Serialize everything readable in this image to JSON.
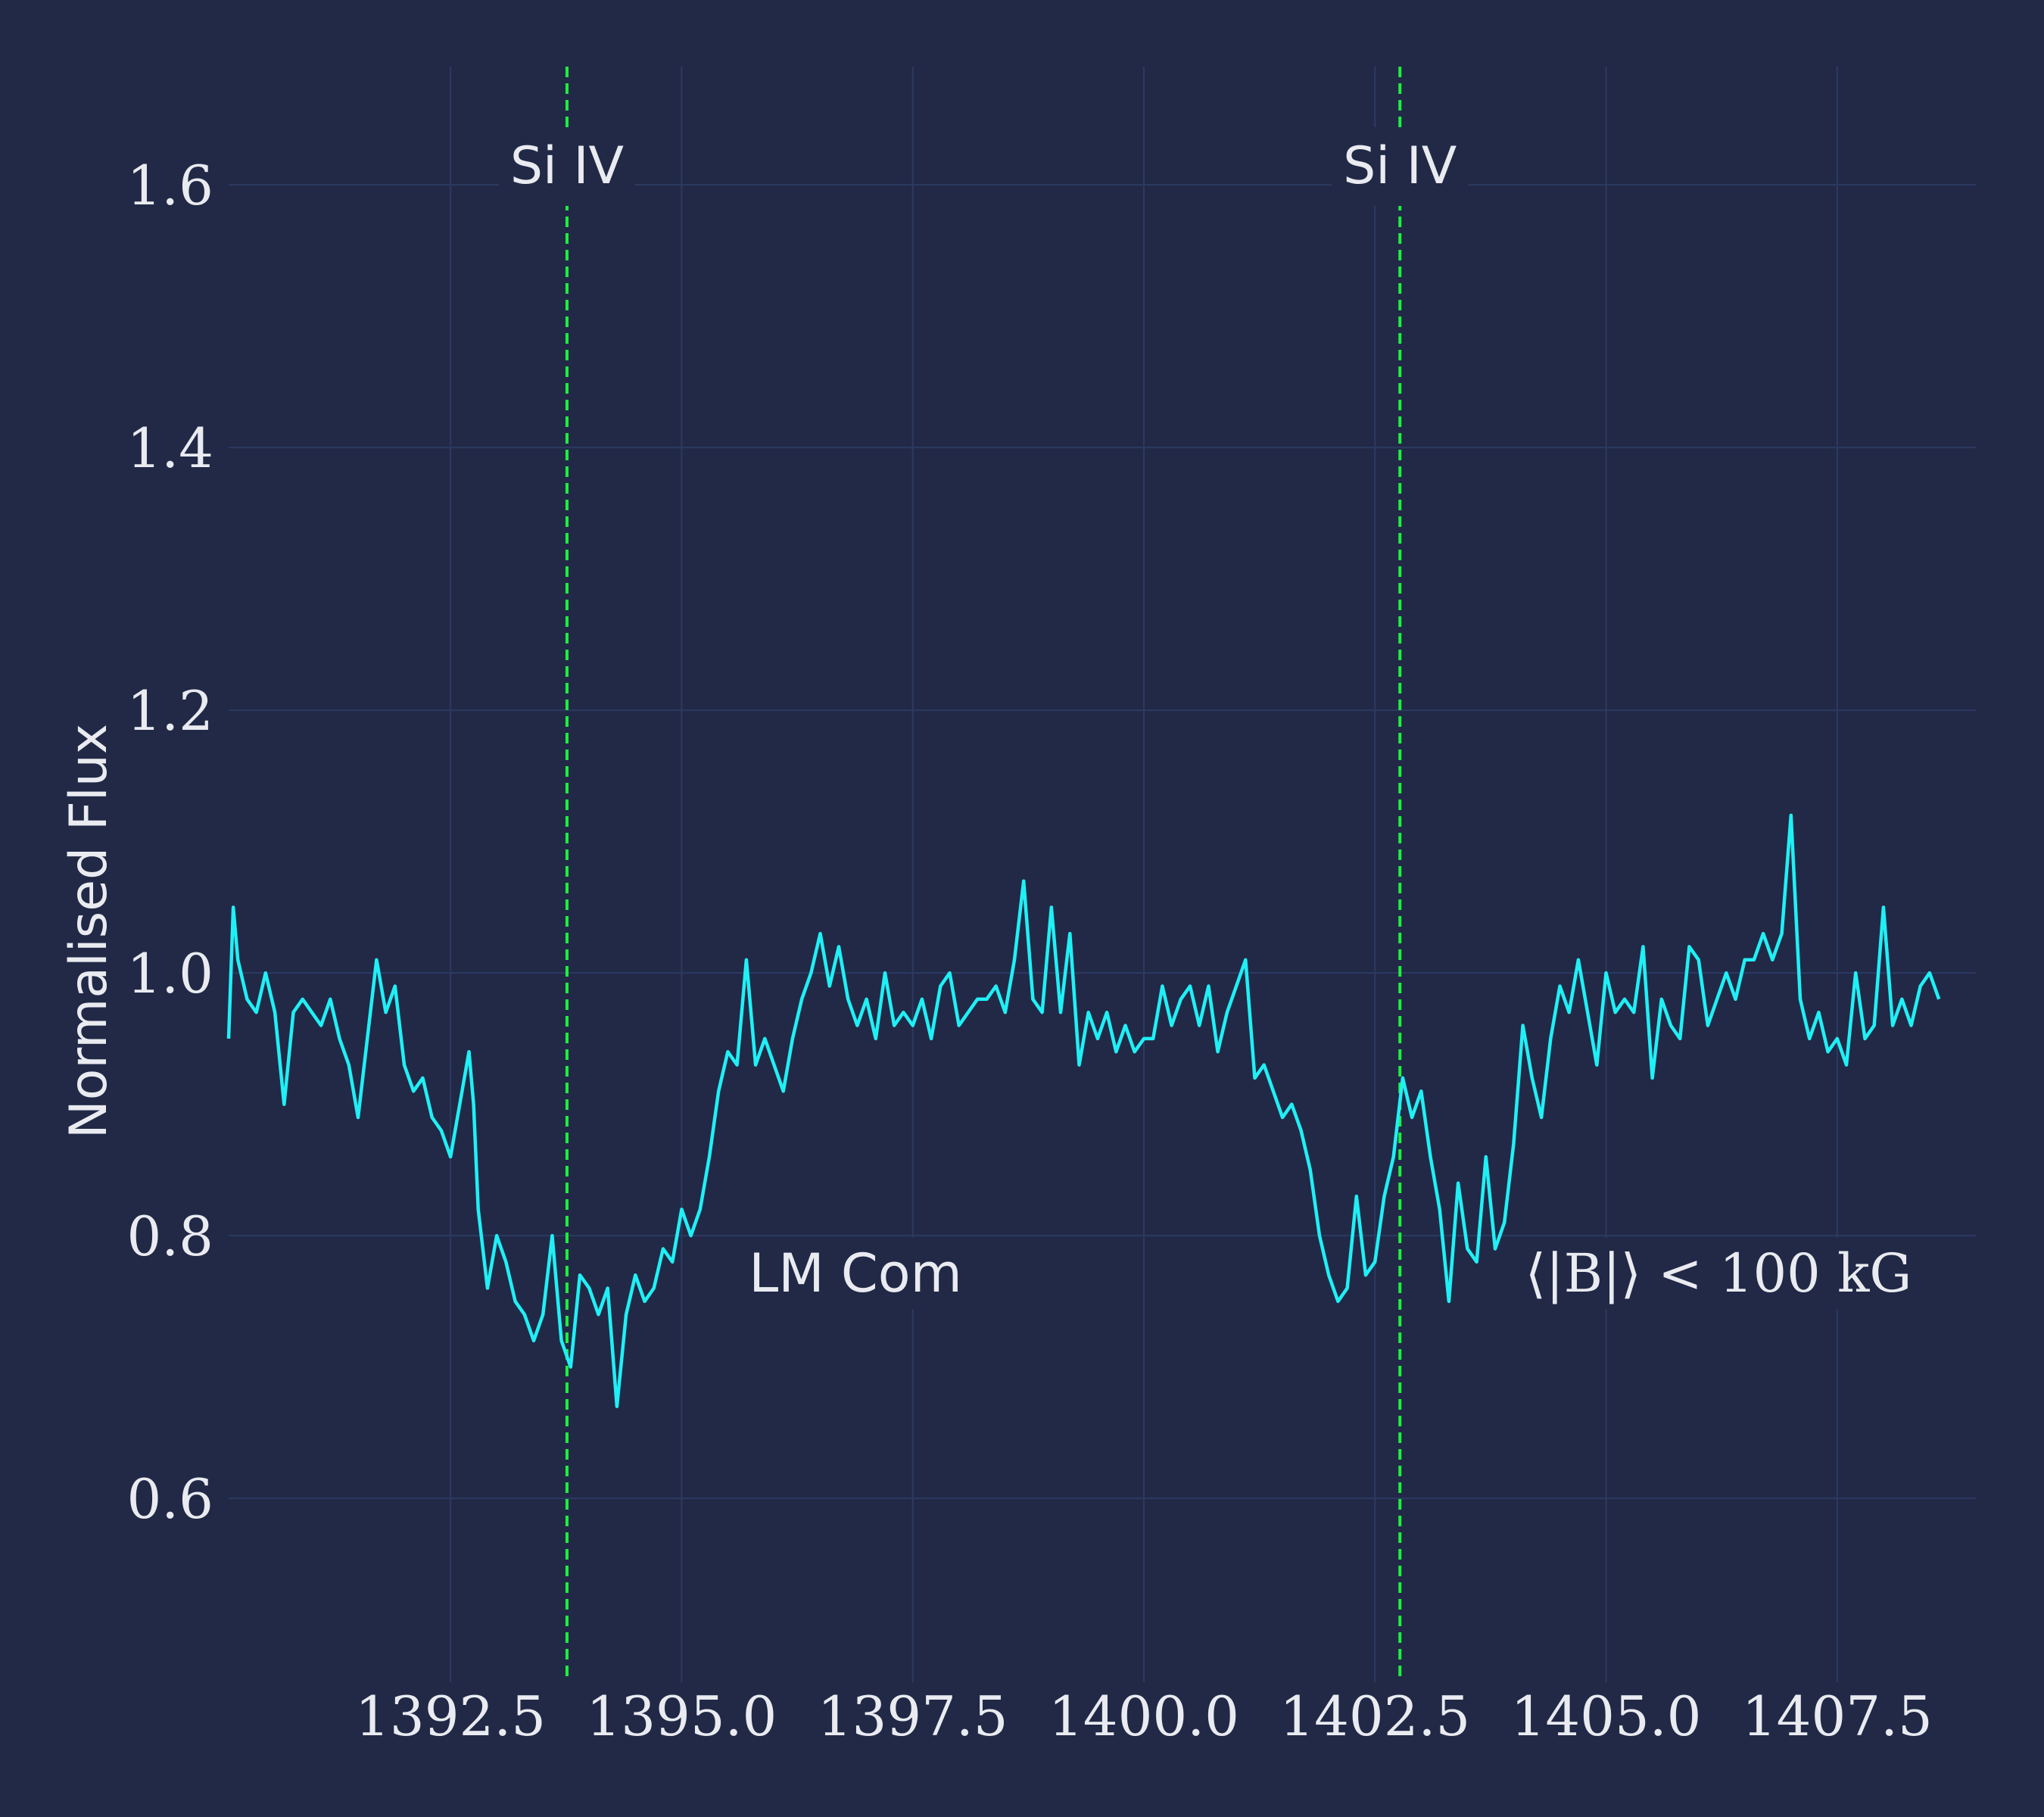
{
  "chart_data": {
    "type": "line",
    "title": "",
    "xlabel": "",
    "ylabel": "Normalised Flux",
    "xlim": [
      1390.1,
      1409.0
    ],
    "ylim": [
      0.46,
      1.69
    ],
    "grid": true,
    "x_ticks": [
      "1392.5",
      "1395.0",
      "1397.5",
      "1400.0",
      "1402.5",
      "1405.0",
      "1407.5"
    ],
    "y_ticks": [
      "0.6",
      "0.8",
      "1.0",
      "1.2",
      "1.4",
      "1.6"
    ],
    "colors": {
      "background": "#212947",
      "grid": "#2c3a61",
      "spectrum": "#1ff0f5",
      "reference_lines": "#1cf03c",
      "text": "#e9ebf0"
    },
    "series": [
      {
        "points": [
          [
            1390.1,
            0.95
          ],
          [
            1390.15,
            1.05
          ],
          [
            1390.2,
            1.01
          ],
          [
            1390.3,
            0.98
          ],
          [
            1390.4,
            0.97
          ],
          [
            1390.5,
            1.0
          ],
          [
            1390.6,
            0.97
          ],
          [
            1390.7,
            0.9
          ],
          [
            1390.8,
            0.97
          ],
          [
            1390.9,
            0.98
          ],
          [
            1391.0,
            0.97
          ],
          [
            1391.1,
            0.96
          ],
          [
            1391.2,
            0.98
          ],
          [
            1391.3,
            0.95
          ],
          [
            1391.4,
            0.93
          ],
          [
            1391.5,
            0.89
          ],
          [
            1391.6,
            0.95
          ],
          [
            1391.7,
            1.01
          ],
          [
            1391.8,
            0.97
          ],
          [
            1391.9,
            0.99
          ],
          [
            1392.0,
            0.93
          ],
          [
            1392.1,
            0.91
          ],
          [
            1392.2,
            0.92
          ],
          [
            1392.3,
            0.89
          ],
          [
            1392.4,
            0.88
          ],
          [
            1392.5,
            0.86
          ],
          [
            1392.6,
            0.9
          ],
          [
            1392.7,
            0.94
          ],
          [
            1392.75,
            0.9
          ],
          [
            1392.8,
            0.82
          ],
          [
            1392.9,
            0.76
          ],
          [
            1393.0,
            0.8
          ],
          [
            1393.1,
            0.78
          ],
          [
            1393.2,
            0.75
          ],
          [
            1393.3,
            0.74
          ],
          [
            1393.4,
            0.72
          ],
          [
            1393.5,
            0.74
          ],
          [
            1393.6,
            0.8
          ],
          [
            1393.7,
            0.72
          ],
          [
            1393.8,
            0.7
          ],
          [
            1393.9,
            0.77
          ],
          [
            1394.0,
            0.76
          ],
          [
            1394.1,
            0.74
          ],
          [
            1394.2,
            0.76
          ],
          [
            1394.3,
            0.67
          ],
          [
            1394.4,
            0.74
          ],
          [
            1394.5,
            0.77
          ],
          [
            1394.6,
            0.75
          ],
          [
            1394.7,
            0.76
          ],
          [
            1394.8,
            0.79
          ],
          [
            1394.9,
            0.78
          ],
          [
            1395.0,
            0.82
          ],
          [
            1395.1,
            0.8
          ],
          [
            1395.2,
            0.82
          ],
          [
            1395.3,
            0.86
          ],
          [
            1395.4,
            0.91
          ],
          [
            1395.5,
            0.94
          ],
          [
            1395.6,
            0.93
          ],
          [
            1395.7,
            1.01
          ],
          [
            1395.8,
            0.93
          ],
          [
            1395.9,
            0.95
          ],
          [
            1396.0,
            0.93
          ],
          [
            1396.1,
            0.91
          ],
          [
            1396.2,
            0.95
          ],
          [
            1396.3,
            0.98
          ],
          [
            1396.4,
            1.0
          ],
          [
            1396.5,
            1.03
          ],
          [
            1396.6,
            0.99
          ],
          [
            1396.7,
            1.02
          ],
          [
            1396.8,
            0.98
          ],
          [
            1396.9,
            0.96
          ],
          [
            1397.0,
            0.98
          ],
          [
            1397.1,
            0.95
          ],
          [
            1397.2,
            1.0
          ],
          [
            1397.3,
            0.96
          ],
          [
            1397.4,
            0.97
          ],
          [
            1397.5,
            0.96
          ],
          [
            1397.6,
            0.98
          ],
          [
            1397.7,
            0.95
          ],
          [
            1397.8,
            0.99
          ],
          [
            1397.9,
            1.0
          ],
          [
            1398.0,
            0.96
          ],
          [
            1398.1,
            0.97
          ],
          [
            1398.2,
            0.98
          ],
          [
            1398.3,
            0.98
          ],
          [
            1398.4,
            0.99
          ],
          [
            1398.5,
            0.97
          ],
          [
            1398.6,
            1.01
          ],
          [
            1398.7,
            1.07
          ],
          [
            1398.8,
            0.98
          ],
          [
            1398.9,
            0.97
          ],
          [
            1399.0,
            1.05
          ],
          [
            1399.1,
            0.97
          ],
          [
            1399.2,
            1.03
          ],
          [
            1399.3,
            0.93
          ],
          [
            1399.4,
            0.97
          ],
          [
            1399.5,
            0.95
          ],
          [
            1399.6,
            0.97
          ],
          [
            1399.7,
            0.94
          ],
          [
            1399.8,
            0.96
          ],
          [
            1399.9,
            0.94
          ],
          [
            1400.0,
            0.95
          ],
          [
            1400.1,
            0.95
          ],
          [
            1400.2,
            0.99
          ],
          [
            1400.3,
            0.96
          ],
          [
            1400.4,
            0.98
          ],
          [
            1400.5,
            0.99
          ],
          [
            1400.6,
            0.96
          ],
          [
            1400.7,
            0.99
          ],
          [
            1400.8,
            0.94
          ],
          [
            1400.9,
            0.97
          ],
          [
            1401.0,
            0.99
          ],
          [
            1401.1,
            1.01
          ],
          [
            1401.2,
            0.92
          ],
          [
            1401.3,
            0.93
          ],
          [
            1401.4,
            0.91
          ],
          [
            1401.5,
            0.89
          ],
          [
            1401.6,
            0.9
          ],
          [
            1401.7,
            0.88
          ],
          [
            1401.8,
            0.85
          ],
          [
            1401.9,
            0.8
          ],
          [
            1402.0,
            0.77
          ],
          [
            1402.1,
            0.75
          ],
          [
            1402.2,
            0.76
          ],
          [
            1402.3,
            0.83
          ],
          [
            1402.4,
            0.77
          ],
          [
            1402.5,
            0.78
          ],
          [
            1402.6,
            0.83
          ],
          [
            1402.7,
            0.86
          ],
          [
            1402.8,
            0.92
          ],
          [
            1402.9,
            0.89
          ],
          [
            1403.0,
            0.91
          ],
          [
            1403.1,
            0.86
          ],
          [
            1403.2,
            0.82
          ],
          [
            1403.3,
            0.75
          ],
          [
            1403.4,
            0.84
          ],
          [
            1403.5,
            0.79
          ],
          [
            1403.6,
            0.78
          ],
          [
            1403.7,
            0.86
          ],
          [
            1403.8,
            0.79
          ],
          [
            1403.9,
            0.81
          ],
          [
            1404.0,
            0.87
          ],
          [
            1404.1,
            0.96
          ],
          [
            1404.2,
            0.92
          ],
          [
            1404.3,
            0.89
          ],
          [
            1404.4,
            0.95
          ],
          [
            1404.5,
            0.99
          ],
          [
            1404.6,
            0.97
          ],
          [
            1404.7,
            1.01
          ],
          [
            1404.8,
            0.97
          ],
          [
            1404.9,
            0.93
          ],
          [
            1405.0,
            1.0
          ],
          [
            1405.1,
            0.97
          ],
          [
            1405.2,
            0.98
          ],
          [
            1405.3,
            0.97
          ],
          [
            1405.4,
            1.02
          ],
          [
            1405.5,
            0.92
          ],
          [
            1405.6,
            0.98
          ],
          [
            1405.7,
            0.96
          ],
          [
            1405.8,
            0.95
          ],
          [
            1405.9,
            1.02
          ],
          [
            1406.0,
            1.01
          ],
          [
            1406.1,
            0.96
          ],
          [
            1406.2,
            0.98
          ],
          [
            1406.3,
            1.0
          ],
          [
            1406.4,
            0.98
          ],
          [
            1406.5,
            1.01
          ],
          [
            1406.6,
            1.01
          ],
          [
            1406.7,
            1.03
          ],
          [
            1406.8,
            1.01
          ],
          [
            1406.9,
            1.03
          ],
          [
            1407.0,
            1.12
          ],
          [
            1407.1,
            0.98
          ],
          [
            1407.2,
            0.95
          ],
          [
            1407.3,
            0.97
          ],
          [
            1407.4,
            0.94
          ],
          [
            1407.5,
            0.95
          ],
          [
            1407.6,
            0.93
          ],
          [
            1407.7,
            1.0
          ],
          [
            1407.8,
            0.95
          ],
          [
            1407.9,
            0.96
          ],
          [
            1408.0,
            1.05
          ],
          [
            1408.1,
            0.96
          ],
          [
            1408.2,
            0.98
          ],
          [
            1408.3,
            0.96
          ],
          [
            1408.4,
            0.99
          ],
          [
            1408.5,
            1.0
          ],
          [
            1408.6,
            0.98
          ]
        ]
      }
    ],
    "reference_lines": [
      {
        "x": 1393.76,
        "label": "Si IV"
      },
      {
        "x": 1402.77,
        "label": "Si IV"
      }
    ],
    "annotations": {
      "star": "LM Com",
      "field": "⟨|B|⟩ < 100 kG"
    }
  }
}
